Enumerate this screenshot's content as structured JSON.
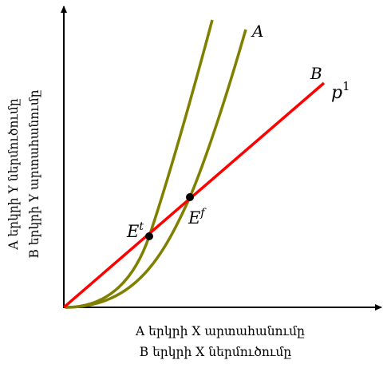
{
  "chart_data": {
    "type": "line",
    "title": "",
    "xlabel": [
      "A երկրի X արտահանումը",
      "B երկրի X ներմուծումը"
    ],
    "ylabel": [
      "A երկրի Y ներմուծումը",
      "B երկրի Y արտահանումը"
    ],
    "series": [
      {
        "name": "A",
        "color": "#808000",
        "shape": "steep convex curve (inner)"
      },
      {
        "name": "A",
        "color": "#808000",
        "shape": "convex curve"
      },
      {
        "name": "B",
        "color": "#ff0000",
        "shape": "straight line from origin"
      }
    ],
    "annotations": {
      "line_label": "p",
      "line_label_sup": "1",
      "point_trade_main": "E",
      "point_trade_sup": "t",
      "point_free_main": "E",
      "point_free_sup": "f"
    },
    "grid": false,
    "colors": {
      "axis": "#000000",
      "curve": "#808000",
      "line": "#ff0000",
      "point": "#000000"
    }
  }
}
